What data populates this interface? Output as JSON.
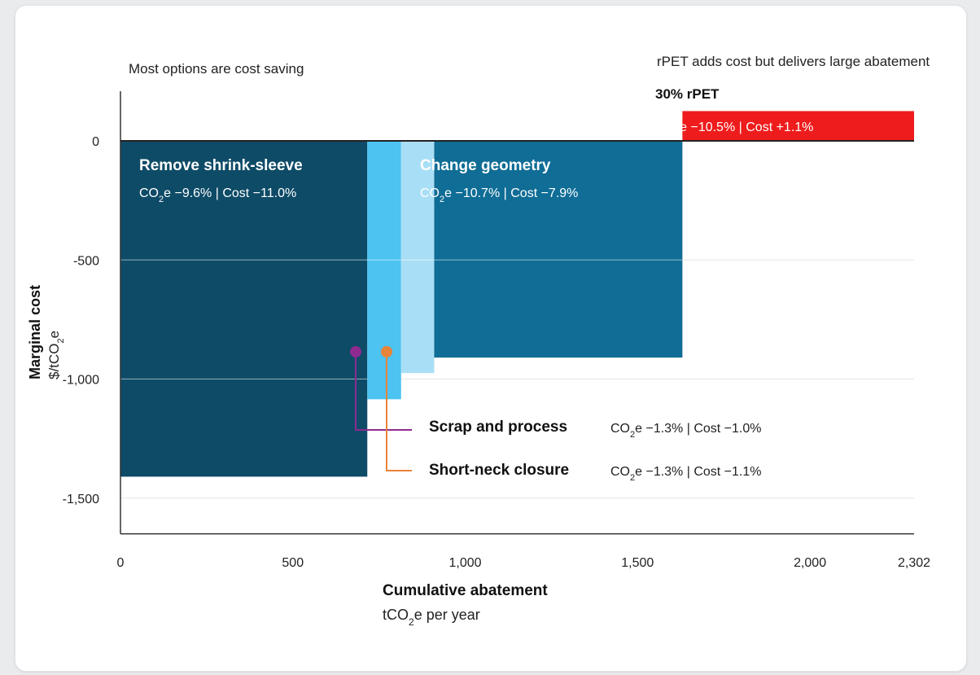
{
  "chart_data": {
    "type": "bar",
    "subtype": "marginal-abatement-cost-curve",
    "notes": {
      "left": "Most options are cost saving",
      "right": "rPET adds cost but delivers large abatement"
    },
    "xlabel": "Cumulative abatement",
    "xunit_prefix": "tCO",
    "xunit_sub": "2",
    "xunit_suffix": "e per year",
    "ylabel": "Marginal cost",
    "yunit_prefix": "$/tCO",
    "yunit_sub": "2",
    "yunit_suffix": "e",
    "xlim": [
      0,
      2302
    ],
    "ylim": [
      -1650,
      200
    ],
    "xticks": [
      {
        "value": 0,
        "label": "0"
      },
      {
        "value": 500,
        "label": "500"
      },
      {
        "value": 1000,
        "label": "1,000"
      },
      {
        "value": 1500,
        "label": "1,500"
      },
      {
        "value": 2000,
        "label": "2,000"
      },
      {
        "value": 2302,
        "label": "2,302"
      }
    ],
    "yticks": [
      {
        "value": 0,
        "label": "0"
      },
      {
        "value": -500,
        "label": "-500"
      },
      {
        "value": -1000,
        "label": "-1,000"
      },
      {
        "value": -1500,
        "label": "-1,500"
      }
    ],
    "grid": true,
    "bars": [
      {
        "id": "shrink",
        "name": "Remove shrink-sleeve",
        "x0": 0,
        "x1": 716,
        "value": -1410,
        "color": "#0e4b67",
        "co2_prefix": "CO",
        "co2_rest": "e −9.6%",
        "cost": " | Cost −11.0%"
      },
      {
        "id": "scrap",
        "name": "Scrap and process",
        "x0": 716,
        "x1": 814,
        "value": -1085,
        "color": "#4cc3f0",
        "co2_prefix": "CO",
        "co2_rest": "e −1.3%",
        "cost": " | Cost −1.0%"
      },
      {
        "id": "neck",
        "name": "Short-neck closure",
        "x0": 814,
        "x1": 910,
        "value": -975,
        "color": "#a9dff6",
        "co2_prefix": "CO",
        "co2_rest": "e −1.3%",
        "cost": " | Cost −1.1%"
      },
      {
        "id": "geom",
        "name": "Change geometry",
        "x0": 910,
        "x1": 1630,
        "value": -910,
        "color": "#0f6d96",
        "co2_prefix": "CO",
        "co2_rest": "e −10.7%",
        "cost": " | Cost −7.9%"
      },
      {
        "id": "rpet",
        "name": "30% rPET",
        "x0": 1630,
        "x1": 2302,
        "value": 125,
        "color": "#ee1c1c",
        "co2_prefix": "CO",
        "co2_rest": "e −10.5%",
        "cost": " | Cost +1.1%"
      }
    ],
    "markers": {
      "scrap": "#8e2a90",
      "neck": "#e8833a"
    }
  }
}
